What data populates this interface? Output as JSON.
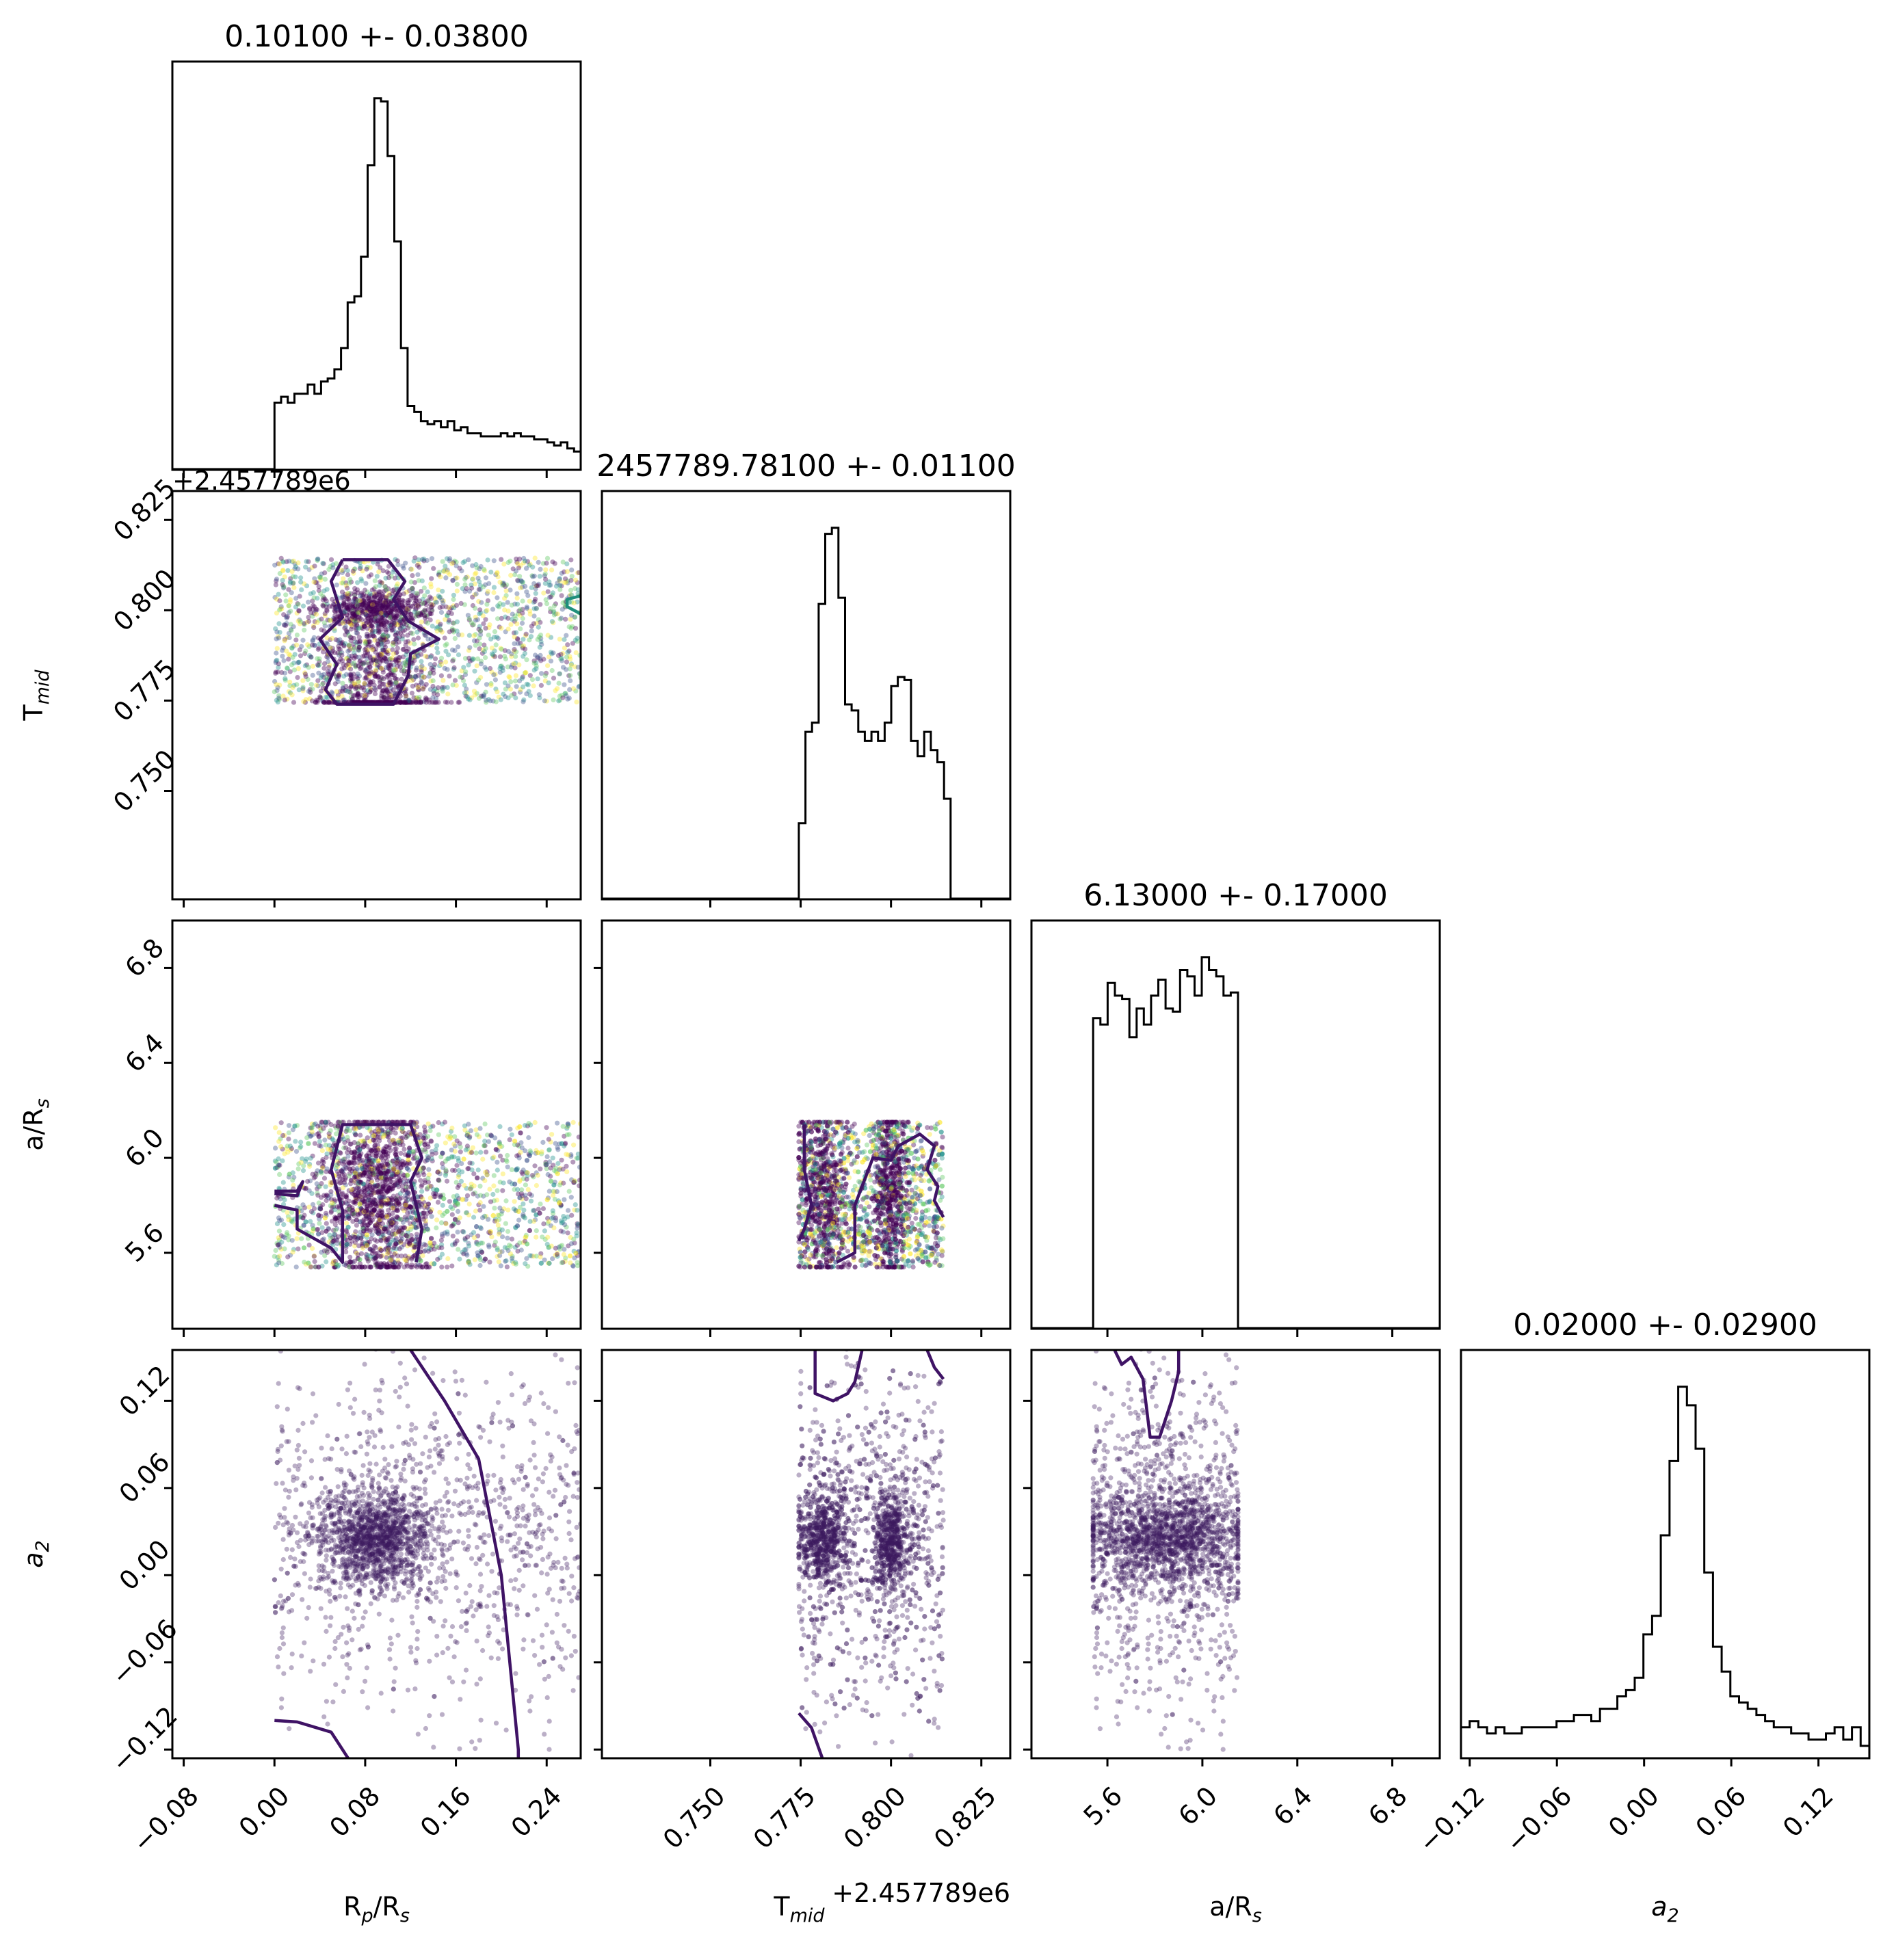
{
  "chart_data": {
    "type": "scatter",
    "subtype": "corner-plot",
    "parameters": [
      {
        "key": "rp",
        "label": "R",
        "label_sub": "p",
        "label_mid": "/R",
        "label_sub2": "s",
        "range": [
          -0.09,
          0.27
        ],
        "ticks": [
          "-0.08",
          "0.00",
          "0.08",
          "0.16",
          "0.24"
        ],
        "tick_values": [
          -0.08,
          0.0,
          0.08,
          0.16,
          0.24
        ],
        "offset_text": "+2.457789e6",
        "sample_range": [
          0.0,
          0.27
        ],
        "center": 0.09
      },
      {
        "key": "tmid",
        "label": "T",
        "label_sub": "mid",
        "label_mid": "",
        "label_sub2": "",
        "range": [
          0.72,
          0.833
        ],
        "ticks": [
          "0.750",
          "0.775",
          "0.800",
          "0.825"
        ],
        "tick_values": [
          0.75,
          0.775,
          0.8,
          0.825
        ],
        "offset_text": "+2.457789e6",
        "sample_range": [
          0.7745,
          0.8145
        ],
        "center": 0.781
      },
      {
        "key": "ars",
        "label": "a/R",
        "label_sub": "s",
        "label_mid": "",
        "label_sub2": "",
        "range": [
          5.28,
          7.0
        ],
        "ticks": [
          "5.6",
          "6.0",
          "6.4",
          "6.8"
        ],
        "tick_values": [
          5.6,
          6.0,
          6.4,
          6.8
        ],
        "offset_text": "",
        "sample_range": [
          5.54,
          6.15
        ],
        "center": 5.85
      },
      {
        "key": "a2",
        "label": "a",
        "label_sub": "2",
        "label_mid": "",
        "label_sub2": "",
        "label_italic": true,
        "range": [
          -0.126,
          0.155
        ],
        "ticks": [
          "-0.12",
          "-0.06",
          "0.00",
          "0.06",
          "0.12"
        ],
        "tick_values": [
          -0.12,
          -0.06,
          0.0,
          0.06,
          0.12
        ],
        "offset_text": "",
        "sample_range": [
          -0.126,
          0.155
        ],
        "center": 0.025
      }
    ],
    "titles": [
      "0.10100 +- 0.03800",
      "2457789.78100 +- 0.01100",
      "6.13000 +- 0.17000",
      "0.02000 +- 0.02900"
    ],
    "histograms": [
      {
        "edges_from": 0.0,
        "edges_to": 0.27,
        "counts": [
          22,
          24,
          22,
          25,
          25,
          28,
          25,
          29,
          30,
          33,
          40,
          55,
          57,
          70,
          100,
          122,
          121,
          103,
          75,
          40,
          21,
          19,
          16,
          15,
          16,
          14,
          16,
          13,
          14,
          12,
          12,
          11,
          11,
          11,
          12,
          11,
          12,
          11,
          11,
          10,
          10,
          9,
          8,
          9,
          7,
          6
        ]
      },
      {
        "edges_from": 0.7745,
        "edges_to": 0.8165,
        "counts": [
          25,
          55,
          58,
          97,
          120,
          122,
          99,
          64,
          62,
          55,
          52,
          55,
          52,
          58,
          70,
          73,
          72,
          52,
          47,
          55,
          49,
          45,
          33
        ]
      },
      {
        "edges_from": 5.54,
        "edges_to": 6.15,
        "counts": [
          97,
          95,
          108,
          104,
          103,
          91,
          100,
          95,
          104,
          109,
          100,
          99,
          112,
          110,
          104,
          116,
          112,
          110,
          104,
          105
        ]
      },
      {
        "edges_from": -0.126,
        "edges_to": 0.155,
        "counts": [
          5,
          6,
          5,
          4,
          5,
          4,
          4,
          5,
          5,
          5,
          5,
          6,
          6,
          7,
          7,
          6,
          8,
          8,
          10,
          11,
          13,
          20,
          23,
          36,
          48,
          60,
          57,
          50,
          30,
          18,
          14,
          10,
          9,
          8,
          7,
          6,
          5,
          5,
          4,
          4,
          3,
          3,
          4,
          5,
          3,
          5,
          2
        ]
      }
    ],
    "colors": {
      "ink": "#000000",
      "scatter": "#3b1a5e",
      "contour_inner": "#3f1365",
      "contour_outer": "#1f8f7c",
      "palette": [
        "#440154",
        "#3b528b",
        "#21918c",
        "#5ec962",
        "#fde725"
      ]
    },
    "grid": false,
    "legend": "none"
  }
}
